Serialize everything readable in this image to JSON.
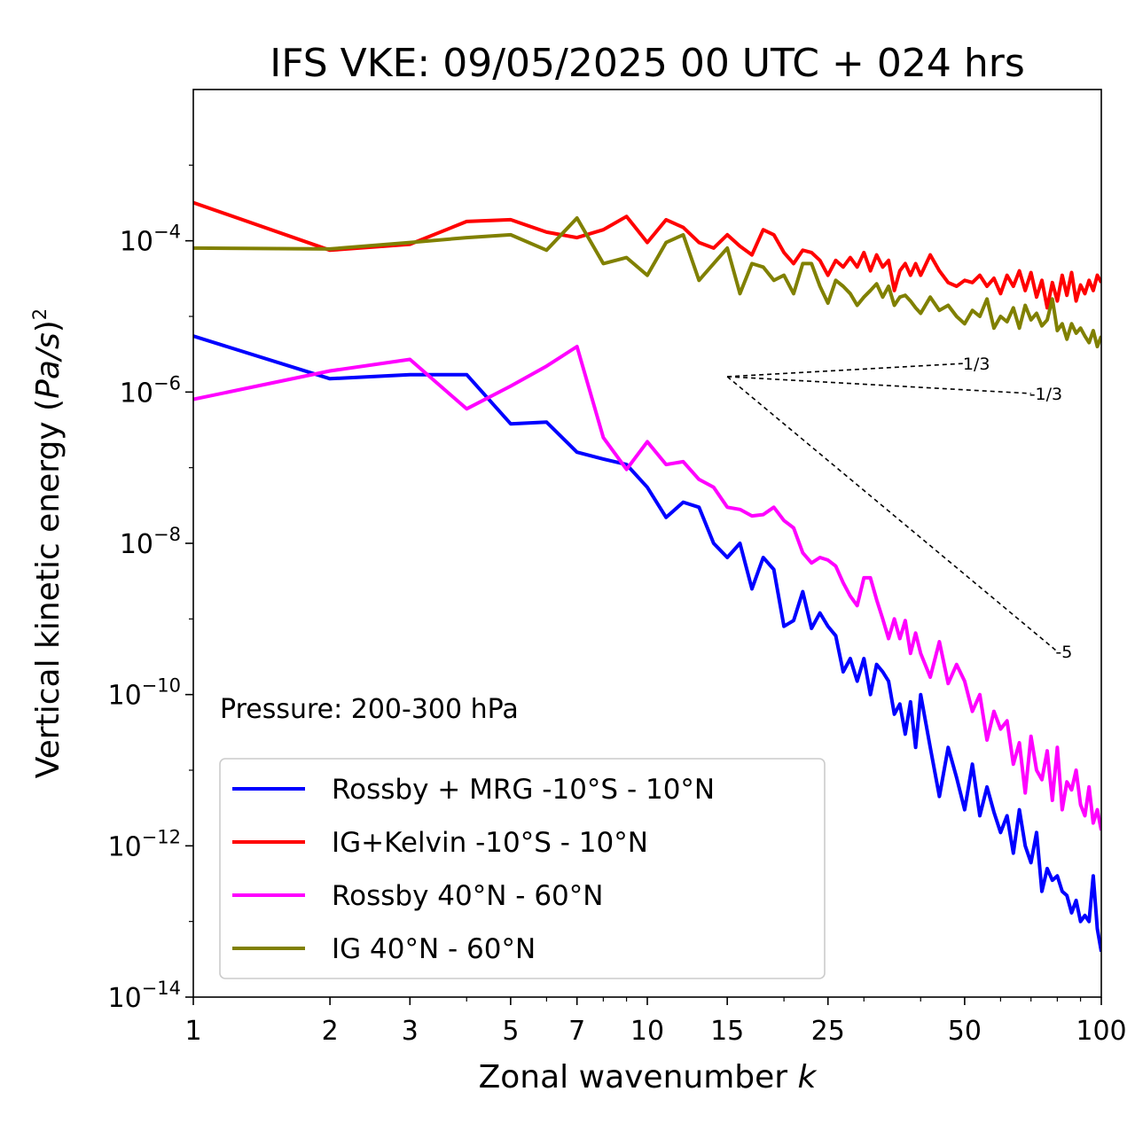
{
  "chart_data": {
    "type": "line",
    "title": "IFS VKE: 09/05/2025 00 UTC + 024 hrs",
    "xlabel_prefix": "Zonal wavenumber ",
    "xlabel_var": "k",
    "ylabel_prefix": "Vertical kinetic energy (",
    "ylabel_var": "Pa/s",
    "ylabel_suffix": ")",
    "ylabel_exp": "2",
    "x_scale": "log",
    "y_scale": "log",
    "xlim": [
      1,
      100
    ],
    "ylim": [
      1e-14,
      0.01
    ],
    "x_ticks": [
      1,
      2,
      3,
      5,
      7,
      10,
      15,
      25,
      50,
      100
    ],
    "x_tick_labels": [
      "1",
      "2",
      "3",
      "5",
      "7",
      "10",
      "15",
      "25",
      "50",
      "100"
    ],
    "y_ticks": [
      1e-14,
      1e-12,
      1e-10,
      1e-08,
      1e-06,
      0.0001
    ],
    "y_tick_base": "10",
    "y_tick_exps": [
      "−14",
      "−12",
      "−10",
      "−8",
      "−6",
      "−4"
    ],
    "grid": false,
    "legend_position": "bottom-left",
    "annotation": "Pressure: 200-300 hPa",
    "reference_slopes": [
      {
        "label": "1/3",
        "slope": 0.3333,
        "x_start": 15,
        "x_end": 50,
        "y_start": 1.6e-06
      },
      {
        "label": "-1/3",
        "slope": -0.3333,
        "x_start": 15,
        "x_end": 70,
        "y_start": 1.6e-06
      },
      {
        "label": "-5",
        "slope": -5,
        "x_start": 15,
        "x_end": 80,
        "y_start": 1.6e-06
      }
    ],
    "series": [
      {
        "name": "Rossby + MRG -10°S - 10°N",
        "color": "#0000ff",
        "x": [
          1,
          2,
          3,
          4,
          5,
          6,
          7,
          8,
          9,
          10,
          11,
          12,
          13,
          14,
          15,
          16,
          17,
          18,
          19,
          20,
          21,
          22,
          23,
          24,
          25,
          26,
          27,
          28,
          29,
          30,
          31,
          32,
          33,
          34,
          35,
          36,
          37,
          38,
          39,
          40,
          42,
          44,
          46,
          48,
          50,
          52,
          54,
          56,
          58,
          60,
          62,
          64,
          66,
          68,
          70,
          72,
          74,
          76,
          78,
          80,
          82,
          84,
          86,
          88,
          90,
          92,
          94,
          96,
          98,
          100
        ],
        "y": [
          5.5e-06,
          1.5e-06,
          1.7e-06,
          1.7e-06,
          3.8e-07,
          4e-07,
          1.6e-07,
          1.3e-07,
          1.1e-07,
          5.5e-08,
          2.2e-08,
          3.5e-08,
          3e-08,
          1e-08,
          6.5e-09,
          1e-08,
          2.5e-09,
          6.5e-09,
          4.5e-09,
          8e-10,
          9.5e-10,
          2.3e-09,
          7.5e-10,
          1.2e-09,
          8e-10,
          6e-10,
          2e-10,
          3e-10,
          1.5e-10,
          3e-10,
          1e-10,
          2.5e-10,
          2e-10,
          1.5e-10,
          5.5e-11,
          7.5e-11,
          3e-11,
          8e-11,
          2e-11,
          1e-10,
          2e-11,
          4.5e-12,
          2e-11,
          8e-12,
          3e-12,
          1.2e-11,
          2.5e-12,
          6e-12,
          2.8e-12,
          1.5e-12,
          2.5e-12,
          8e-13,
          3e-12,
          1e-12,
          6e-13,
          1.5e-12,
          2.5e-13,
          5e-13,
          3.5e-13,
          4e-13,
          2.5e-13,
          2.2e-13,
          1.3e-13,
          1.9e-13,
          1e-13,
          1.2e-13,
          1e-13,
          4e-13,
          8e-14,
          4e-14
        ]
      },
      {
        "name": "IG+Kelvin -10°S - 10°N",
        "color": "#ff0000",
        "x": [
          1,
          2,
          3,
          4,
          5,
          6,
          7,
          8,
          9,
          10,
          11,
          12,
          13,
          14,
          15,
          16,
          17,
          18,
          19,
          20,
          21,
          22,
          23,
          24,
          25,
          26,
          27,
          28,
          29,
          30,
          31,
          32,
          33,
          34,
          35,
          36,
          37,
          38,
          39,
          40,
          42,
          44,
          46,
          48,
          50,
          52,
          54,
          56,
          58,
          60,
          62,
          64,
          66,
          68,
          70,
          72,
          74,
          76,
          78,
          80,
          82,
          84,
          86,
          88,
          90,
          92,
          94,
          96,
          98,
          100
        ],
        "y": [
          0.00032,
          7.5e-05,
          9e-05,
          0.00018,
          0.00019,
          0.00013,
          0.00011,
          0.00014,
          0.00021,
          9.5e-05,
          0.00019,
          0.00015,
          9.5e-05,
          8e-05,
          0.00012,
          8.5e-05,
          6.5e-05,
          0.00014,
          0.00012,
          7e-05,
          5e-05,
          7.5e-05,
          7e-05,
          5.5e-05,
          3.5e-05,
          5.5e-05,
          4.5e-05,
          6e-05,
          4.5e-05,
          7e-05,
          4e-05,
          6.5e-05,
          4.5e-05,
          5.5e-05,
          2.2e-05,
          4e-05,
          5e-05,
          3.5e-05,
          5e-05,
          3.5e-05,
          6.5e-05,
          4e-05,
          2.8e-05,
          2.5e-05,
          3e-05,
          2.8e-05,
          3.5e-05,
          2.5e-05,
          3.2e-05,
          2e-05,
          3.5e-05,
          2.5e-05,
          4e-05,
          2.2e-05,
          3.8e-05,
          1.8e-05,
          3e-05,
          1.3e-05,
          2.8e-05,
          1.6e-05,
          3.5e-05,
          1.9e-05,
          3.8e-05,
          1.6e-05,
          2.6e-05,
          2e-05,
          3e-05,
          2.2e-05,
          3.5e-05,
          2.8e-05
        ]
      },
      {
        "name": "Rossby 40°N - 60°N",
        "color": "#ff00ff",
        "x": [
          1,
          2,
          3,
          4,
          5,
          6,
          7,
          8,
          9,
          10,
          11,
          12,
          13,
          14,
          15,
          16,
          17,
          18,
          19,
          20,
          21,
          22,
          23,
          24,
          25,
          26,
          27,
          28,
          29,
          30,
          31,
          32,
          33,
          34,
          35,
          36,
          37,
          38,
          39,
          40,
          42,
          44,
          46,
          48,
          50,
          52,
          54,
          56,
          58,
          60,
          62,
          64,
          66,
          68,
          70,
          72,
          74,
          76,
          78,
          80,
          82,
          84,
          86,
          88,
          90,
          92,
          94,
          96,
          98,
          100
        ],
        "y": [
          8e-07,
          1.9e-06,
          2.7e-06,
          6e-07,
          1.2e-06,
          2.2e-06,
          4e-06,
          2.5e-07,
          9.5e-08,
          2.2e-07,
          1.1e-07,
          1.2e-07,
          7e-08,
          5.5e-08,
          3e-08,
          2.8e-08,
          2.3e-08,
          2.4e-08,
          3e-08,
          2e-08,
          1.6e-08,
          7.5e-09,
          5.5e-09,
          6.5e-09,
          6e-09,
          5e-09,
          3e-09,
          2e-09,
          1.5e-09,
          3.5e-09,
          3.5e-09,
          1.8e-09,
          1e-09,
          5.5e-10,
          1e-09,
          5.5e-10,
          9.5e-10,
          3.5e-10,
          6.5e-10,
          3.5e-10,
          1.7e-10,
          5e-10,
          1.4e-10,
          2.5e-10,
          1.5e-10,
          6e-11,
          1e-10,
          2.5e-11,
          6e-11,
          3.5e-11,
          4.5e-11,
          1.2e-11,
          2.3e-11,
          5e-12,
          2.8e-11,
          1e-11,
          7.5e-12,
          1.8e-11,
          4e-12,
          2e-11,
          3e-12,
          7e-12,
          5.5e-12,
          1e-11,
          3.5e-12,
          2.5e-12,
          6e-12,
          2e-12,
          3e-12,
          1.6e-12
        ]
      },
      {
        "name": "IG 40°N - 60°N",
        "color": "#808000",
        "x": [
          1,
          2,
          3,
          4,
          5,
          6,
          7,
          8,
          9,
          10,
          11,
          12,
          13,
          14,
          15,
          16,
          17,
          18,
          19,
          20,
          21,
          22,
          23,
          24,
          25,
          26,
          27,
          28,
          29,
          30,
          31,
          32,
          33,
          34,
          35,
          36,
          37,
          38,
          39,
          40,
          42,
          44,
          46,
          48,
          50,
          52,
          54,
          56,
          58,
          60,
          62,
          64,
          66,
          68,
          70,
          72,
          74,
          76,
          78,
          80,
          82,
          84,
          86,
          88,
          90,
          92,
          94,
          96,
          98,
          100
        ],
        "y": [
          8e-05,
          7.8e-05,
          9.5e-05,
          0.00011,
          0.00012,
          7.5e-05,
          0.0002,
          5e-05,
          6e-05,
          3.5e-05,
          9.5e-05,
          0.00012,
          3e-05,
          5e-05,
          8e-05,
          2e-05,
          5e-05,
          4.5e-05,
          3e-05,
          3.5e-05,
          2e-05,
          5e-05,
          5e-05,
          2.5e-05,
          1.5e-05,
          3e-05,
          2.5e-05,
          2e-05,
          1.4e-05,
          1.8e-05,
          2.2e-05,
          2.7e-05,
          1.8e-05,
          2.5e-05,
          1.4e-05,
          1.8e-05,
          1.9e-05,
          1.6e-05,
          1.3e-05,
          1.1e-05,
          1.8e-05,
          1.2e-05,
          1.4e-05,
          1e-05,
          8e-06,
          1.2e-05,
          1e-05,
          1.7e-05,
          7e-06,
          1e-05,
          8.5e-06,
          1.3e-05,
          7e-06,
          1.4e-05,
          9e-06,
          1.1e-05,
          7.5e-06,
          9e-06,
          1.7e-05,
          6.5e-06,
          8e-06,
          5e-06,
          8e-06,
          6e-06,
          7e-06,
          5.5e-06,
          4.5e-06,
          6.5e-06,
          4e-06,
          5.5e-06
        ]
      }
    ]
  }
}
